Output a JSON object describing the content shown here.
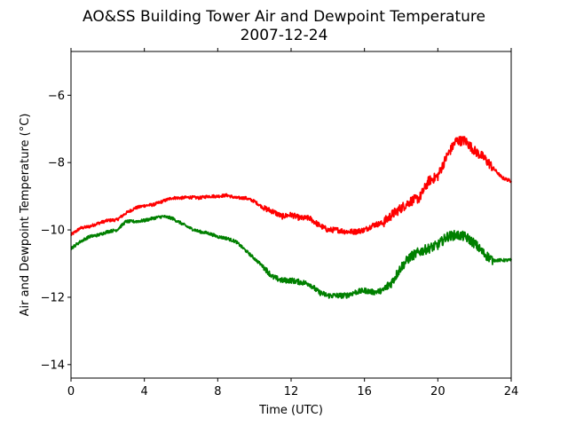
{
  "chart_data": {
    "type": "line",
    "title": "AO&SS Building Tower Air and Dewpoint Temperature",
    "subtitle": "2007-12-24",
    "xlabel": "Time (UTC)",
    "ylabel": "Air and Dewpoint Temperature (°C)",
    "xlim": [
      0,
      24
    ],
    "ylim": [
      -14.4,
      -4.7
    ],
    "xticks": [
      0,
      4,
      8,
      12,
      16,
      20,
      24
    ],
    "yticks": [
      -14,
      -12,
      -10,
      -8,
      -6
    ],
    "xtick_labels": [
      "0",
      "4",
      "8",
      "12",
      "16",
      "20",
      "24"
    ],
    "ytick_labels": [
      "−14",
      "−12",
      "−10",
      "−8",
      "−6"
    ],
    "grid": false,
    "series": [
      {
        "color": "#ff0000",
        "points": [
          [
            0.0,
            -10.15
          ],
          [
            0.5,
            -9.95
          ],
          [
            1.0,
            -9.9
          ],
          [
            1.5,
            -9.8
          ],
          [
            2.0,
            -9.72
          ],
          [
            2.5,
            -9.7
          ],
          [
            3.0,
            -9.5
          ],
          [
            3.5,
            -9.35
          ],
          [
            4.0,
            -9.28
          ],
          [
            4.5,
            -9.25
          ],
          [
            5.0,
            -9.15
          ],
          [
            5.5,
            -9.05
          ],
          [
            6.0,
            -9.05
          ],
          [
            6.5,
            -9.03
          ],
          [
            7.0,
            -9.05
          ],
          [
            7.5,
            -9.0
          ],
          [
            8.0,
            -9.0
          ],
          [
            8.5,
            -8.97
          ],
          [
            9.0,
            -9.05
          ],
          [
            9.5,
            -9.05
          ],
          [
            10.0,
            -9.15
          ],
          [
            10.5,
            -9.35
          ],
          [
            11.0,
            -9.45
          ],
          [
            11.5,
            -9.6
          ],
          [
            12.0,
            -9.55
          ],
          [
            12.5,
            -9.65
          ],
          [
            13.0,
            -9.65
          ],
          [
            13.5,
            -9.85
          ],
          [
            14.0,
            -10.0
          ],
          [
            14.5,
            -10.0
          ],
          [
            15.0,
            -10.05
          ],
          [
            15.5,
            -10.05
          ],
          [
            16.0,
            -10.0
          ],
          [
            16.5,
            -9.85
          ],
          [
            17.0,
            -9.8
          ],
          [
            17.5,
            -9.55
          ],
          [
            18.0,
            -9.35
          ],
          [
            18.5,
            -9.15
          ],
          [
            19.0,
            -9.05
          ],
          [
            19.5,
            -8.55
          ],
          [
            20.0,
            -8.4
          ],
          [
            20.5,
            -7.8
          ],
          [
            21.0,
            -7.35
          ],
          [
            21.5,
            -7.35
          ],
          [
            22.0,
            -7.65
          ],
          [
            22.5,
            -7.85
          ],
          [
            23.0,
            -8.15
          ],
          [
            23.5,
            -8.45
          ],
          [
            24.0,
            -8.55
          ]
        ]
      },
      {
        "color": "#008000",
        "points": [
          [
            0.0,
            -10.55
          ],
          [
            0.5,
            -10.35
          ],
          [
            1.0,
            -10.2
          ],
          [
            1.5,
            -10.15
          ],
          [
            2.0,
            -10.05
          ],
          [
            2.5,
            -10.0
          ],
          [
            3.0,
            -9.75
          ],
          [
            3.5,
            -9.75
          ],
          [
            4.0,
            -9.72
          ],
          [
            4.5,
            -9.65
          ],
          [
            5.0,
            -9.6
          ],
          [
            5.5,
            -9.65
          ],
          [
            6.0,
            -9.8
          ],
          [
            6.5,
            -9.95
          ],
          [
            7.0,
            -10.05
          ],
          [
            7.5,
            -10.1
          ],
          [
            8.0,
            -10.2
          ],
          [
            8.5,
            -10.25
          ],
          [
            9.0,
            -10.35
          ],
          [
            9.5,
            -10.6
          ],
          [
            10.0,
            -10.85
          ],
          [
            10.5,
            -11.1
          ],
          [
            11.0,
            -11.4
          ],
          [
            11.5,
            -11.5
          ],
          [
            12.0,
            -11.5
          ],
          [
            12.5,
            -11.55
          ],
          [
            13.0,
            -11.6
          ],
          [
            13.5,
            -11.85
          ],
          [
            14.0,
            -11.95
          ],
          [
            14.5,
            -11.95
          ],
          [
            15.0,
            -11.95
          ],
          [
            15.5,
            -11.85
          ],
          [
            16.0,
            -11.8
          ],
          [
            16.5,
            -11.85
          ],
          [
            17.0,
            -11.8
          ],
          [
            17.5,
            -11.55
          ],
          [
            18.0,
            -11.1
          ],
          [
            18.5,
            -10.8
          ],
          [
            19.0,
            -10.65
          ],
          [
            19.5,
            -10.55
          ],
          [
            20.0,
            -10.45
          ],
          [
            20.5,
            -10.2
          ],
          [
            21.0,
            -10.15
          ],
          [
            21.5,
            -10.2
          ],
          [
            22.0,
            -10.4
          ],
          [
            22.5,
            -10.7
          ],
          [
            23.0,
            -10.9
          ],
          [
            23.5,
            -10.9
          ],
          [
            24.0,
            -10.9
          ]
        ]
      }
    ]
  }
}
